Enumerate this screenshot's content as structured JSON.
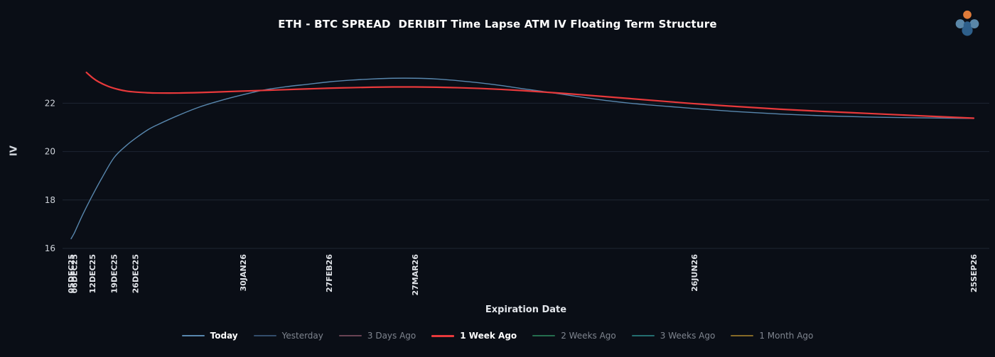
{
  "colors": {
    "background": "#0a0e16",
    "grid": "#1e2633",
    "title_text": "#ffffff",
    "x_tick_text": "#e0e3e8",
    "y_tick_text": "#ced3da",
    "axis_label_text": "#e2e5ea",
    "legend_active": "#ffffff",
    "legend_dim": "#7f858f",
    "logo_orange": "#e07b39",
    "logo_blue_light": "#5a87a8",
    "logo_blue_dark": "#2e5f8a"
  },
  "legend": {
    "items": [
      {
        "label": "Today",
        "color": "#5887ae",
        "active": true,
        "thickness": 2
      },
      {
        "label": "Yesterday",
        "color": "#41638a",
        "active": false,
        "thickness": 2
      },
      {
        "label": "3 Days Ago",
        "color": "#8a5568",
        "active": false,
        "thickness": 2
      },
      {
        "label": "1 Week Ago",
        "color": "#e8393b",
        "active": true,
        "thickness": 3
      },
      {
        "label": "2 Weeks Ago",
        "color": "#2f8f62",
        "active": false,
        "thickness": 2
      },
      {
        "label": "3 Weeks Ago",
        "color": "#2e8f8f",
        "active": false,
        "thickness": 2
      },
      {
        "label": "1 Month Ago",
        "color": "#b08a2e",
        "active": false,
        "thickness": 2
      }
    ]
  },
  "chart_data": {
    "type": "line",
    "title": "ETH - BTC SPREAD  DERIBIT Time Lapse ATM IV Floating Term Structure",
    "xlabel": "Expiration Date",
    "ylabel": "IV",
    "x_unit": "days_to_expiration",
    "xlim_days": [
      0,
      294
    ],
    "ylim": [
      16,
      23.8
    ],
    "y_ticks": [
      16,
      18,
      20,
      22
    ],
    "grid": "horizontal",
    "legend_position": "bottom",
    "x_ticks": [
      {
        "label": "05DEC25",
        "day": 0
      },
      {
        "label": "06DEC25",
        "day": 1
      },
      {
        "label": "12DEC25",
        "day": 7
      },
      {
        "label": "19DEC25",
        "day": 14
      },
      {
        "label": "26DEC25",
        "day": 21
      },
      {
        "label": "30JAN26",
        "day": 56
      },
      {
        "label": "27FEB26",
        "day": 84
      },
      {
        "label": "27MAR26",
        "day": 112
      },
      {
        "label": "26JUN26",
        "day": 203
      },
      {
        "label": "25SEP26",
        "day": 294
      }
    ],
    "series": [
      {
        "name": "Today",
        "color": "#5887ae",
        "visible": true,
        "stroke_width": 1.4,
        "points": [
          [
            0,
            16.4
          ],
          [
            1,
            16.62
          ],
          [
            2,
            16.9
          ],
          [
            4,
            17.45
          ],
          [
            7,
            18.2
          ],
          [
            10,
            18.9
          ],
          [
            14,
            19.75
          ],
          [
            18,
            20.25
          ],
          [
            21,
            20.55
          ],
          [
            25,
            20.9
          ],
          [
            28,
            21.1
          ],
          [
            35,
            21.5
          ],
          [
            42,
            21.85
          ],
          [
            49,
            22.12
          ],
          [
            56,
            22.35
          ],
          [
            63,
            22.55
          ],
          [
            70,
            22.68
          ],
          [
            77,
            22.78
          ],
          [
            84,
            22.88
          ],
          [
            91,
            22.95
          ],
          [
            98,
            23.0
          ],
          [
            105,
            23.03
          ],
          [
            112,
            23.03
          ],
          [
            119,
            23.0
          ],
          [
            126,
            22.93
          ],
          [
            133,
            22.84
          ],
          [
            140,
            22.73
          ],
          [
            147,
            22.6
          ],
          [
            154,
            22.48
          ],
          [
            161,
            22.35
          ],
          [
            168,
            22.22
          ],
          [
            175,
            22.1
          ],
          [
            182,
            22.0
          ],
          [
            189,
            21.92
          ],
          [
            196,
            21.85
          ],
          [
            203,
            21.78
          ],
          [
            217,
            21.65
          ],
          [
            231,
            21.55
          ],
          [
            245,
            21.48
          ],
          [
            259,
            21.43
          ],
          [
            273,
            21.4
          ],
          [
            294,
            21.37
          ]
        ]
      },
      {
        "name": "Yesterday",
        "color": "#41638a",
        "visible": false,
        "stroke_width": 1.4,
        "points": []
      },
      {
        "name": "3 Days Ago",
        "color": "#8a5568",
        "visible": false,
        "stroke_width": 1.4,
        "points": []
      },
      {
        "name": "1 Week Ago",
        "color": "#e8393b",
        "visible": true,
        "stroke_width": 2.2,
        "points": [
          [
            5,
            23.27
          ],
          [
            7,
            23.05
          ],
          [
            9,
            22.88
          ],
          [
            12,
            22.7
          ],
          [
            15,
            22.58
          ],
          [
            18,
            22.5
          ],
          [
            21,
            22.46
          ],
          [
            25,
            22.43
          ],
          [
            28,
            22.42
          ],
          [
            35,
            22.42
          ],
          [
            42,
            22.44
          ],
          [
            49,
            22.47
          ],
          [
            56,
            22.5
          ],
          [
            63,
            22.53
          ],
          [
            70,
            22.56
          ],
          [
            77,
            22.59
          ],
          [
            84,
            22.62
          ],
          [
            91,
            22.64
          ],
          [
            98,
            22.66
          ],
          [
            105,
            22.67
          ],
          [
            112,
            22.67
          ],
          [
            119,
            22.66
          ],
          [
            126,
            22.64
          ],
          [
            133,
            22.61
          ],
          [
            140,
            22.57
          ],
          [
            147,
            22.52
          ],
          [
            154,
            22.46
          ],
          [
            161,
            22.4
          ],
          [
            168,
            22.33
          ],
          [
            175,
            22.26
          ],
          [
            182,
            22.19
          ],
          [
            189,
            22.12
          ],
          [
            196,
            22.05
          ],
          [
            203,
            21.98
          ],
          [
            217,
            21.86
          ],
          [
            231,
            21.75
          ],
          [
            245,
            21.66
          ],
          [
            259,
            21.58
          ],
          [
            273,
            21.5
          ],
          [
            294,
            21.38
          ]
        ]
      },
      {
        "name": "2 Weeks Ago",
        "color": "#2f8f62",
        "visible": false,
        "stroke_width": 1.4,
        "points": []
      },
      {
        "name": "3 Weeks Ago",
        "color": "#2e8f8f",
        "visible": false,
        "stroke_width": 1.4,
        "points": []
      },
      {
        "name": "1 Month Ago",
        "color": "#b08a2e",
        "visible": false,
        "stroke_width": 1.4,
        "points": []
      }
    ]
  }
}
